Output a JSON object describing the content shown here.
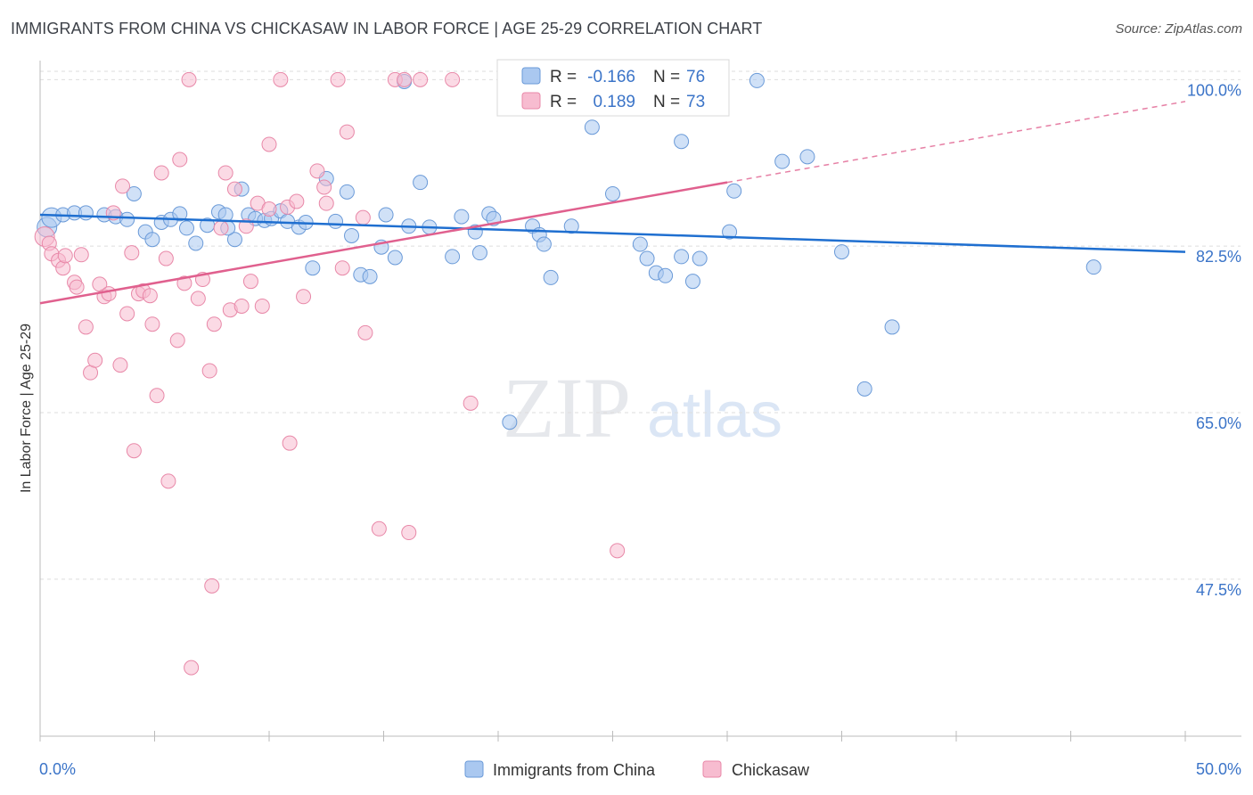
{
  "header": {
    "title": "IMMIGRANTS FROM CHINA VS CHICKASAW IN LABOR FORCE | AGE 25-29 CORRELATION CHART",
    "source": "Source: ZipAtlas.com"
  },
  "watermark": {
    "zip": "ZIP",
    "atlas": "atlas"
  },
  "colors": {
    "blue_fill": "#aac8f0",
    "blue_stroke": "#6a9ad8",
    "blue_line": "#1f6fd0",
    "pink_fill": "#f7bcd0",
    "pink_stroke": "#e888a8",
    "pink_line": "#e0608e",
    "tick_label": "#3b74c8",
    "grid": "#dddddd"
  },
  "legend": {
    "rows": [
      {
        "r_label": "R =",
        "r_value": "-0.166",
        "n_label": "N =",
        "n_value": "76"
      },
      {
        "r_label": "R =",
        "r_value": "0.189",
        "n_label": "N =",
        "n_value": "73"
      }
    ]
  },
  "bottom_legend": [
    "Immigrants from China",
    "Chickasaw"
  ],
  "chart_data": {
    "type": "scatter",
    "title": "IMMIGRANTS FROM CHINA VS CHICKASAW IN LABOR FORCE | AGE 25-29 CORRELATION CHART",
    "xlabel": "",
    "ylabel": "In Labor Force | Age 25-29",
    "xlim": [
      0,
      50
    ],
    "ylim": [
      31,
      102
    ],
    "x_tick_labels": [
      "0.0%",
      "50.0%"
    ],
    "y_ticks": [
      100,
      82.5,
      65,
      47.5
    ],
    "y_tick_labels": [
      "100.0%",
      "82.5%",
      "65.0%",
      "47.5%"
    ],
    "series": [
      {
        "name": "Immigrants from China",
        "r": -0.166,
        "n": 76,
        "trend": {
          "x0": 0,
          "y0": 85.8,
          "x1": 50,
          "y1": 81.9
        },
        "points": [
          [
            0.3,
            84.5,
            11
          ],
          [
            0.5,
            85.5,
            11
          ],
          [
            1.0,
            85.8,
            8
          ],
          [
            1.5,
            86.0,
            8
          ],
          [
            2.0,
            86.0,
            8
          ],
          [
            2.8,
            85.8,
            8
          ],
          [
            3.3,
            85.6,
            8
          ],
          [
            3.8,
            85.3,
            8
          ],
          [
            4.1,
            88.0,
            8
          ],
          [
            4.6,
            84.0,
            8
          ],
          [
            4.9,
            83.2,
            8
          ],
          [
            5.3,
            85.0,
            8
          ],
          [
            5.7,
            85.3,
            8
          ],
          [
            6.1,
            85.9,
            8
          ],
          [
            6.4,
            84.4,
            8
          ],
          [
            6.8,
            82.8,
            8
          ],
          [
            7.3,
            84.7,
            8
          ],
          [
            7.8,
            86.1,
            8
          ],
          [
            8.1,
            85.8,
            8
          ],
          [
            8.5,
            83.2,
            8
          ],
          [
            8.8,
            88.5,
            8
          ],
          [
            9.1,
            85.8,
            8
          ],
          [
            9.4,
            85.4,
            8
          ],
          [
            9.8,
            85.2,
            8
          ],
          [
            10.1,
            85.4,
            8
          ],
          [
            10.5,
            86.2,
            8
          ],
          [
            10.8,
            85.1,
            8
          ],
          [
            11.3,
            84.5,
            8
          ],
          [
            11.9,
            80.2,
            8
          ],
          [
            12.5,
            89.6,
            8
          ],
          [
            12.9,
            85.1,
            8
          ],
          [
            13.4,
            88.2,
            8
          ],
          [
            13.6,
            83.6,
            8
          ],
          [
            14.0,
            79.5,
            8
          ],
          [
            14.4,
            79.3,
            8
          ],
          [
            14.9,
            82.4,
            8
          ],
          [
            15.1,
            85.8,
            8
          ],
          [
            15.5,
            81.3,
            8
          ],
          [
            15.9,
            99.8,
            8
          ],
          [
            16.1,
            84.6,
            8
          ],
          [
            16.6,
            89.2,
            8
          ],
          [
            17.0,
            84.5,
            8
          ],
          [
            18.0,
            81.4,
            8
          ],
          [
            18.4,
            85.6,
            8
          ],
          [
            19.0,
            84.0,
            8
          ],
          [
            19.2,
            81.8,
            8
          ],
          [
            19.6,
            85.9,
            8
          ],
          [
            19.8,
            85.4,
            8
          ],
          [
            21.0,
            97.0,
            8
          ],
          [
            21.5,
            84.6,
            8
          ],
          [
            21.8,
            83.7,
            8
          ],
          [
            22.0,
            82.7,
            8
          ],
          [
            22.3,
            79.2,
            8
          ],
          [
            23.2,
            84.6,
            8
          ],
          [
            24.1,
            95.0,
            8
          ],
          [
            25.0,
            88.0,
            8
          ],
          [
            26.2,
            82.7,
            8
          ],
          [
            26.5,
            81.2,
            8
          ],
          [
            26.9,
            79.7,
            8
          ],
          [
            27.3,
            79.4,
            8
          ],
          [
            28.0,
            81.4,
            8
          ],
          [
            28.5,
            78.8,
            8
          ],
          [
            28.8,
            81.2,
            8
          ],
          [
            30.1,
            84.0,
            8
          ],
          [
            30.3,
            88.3,
            8
          ],
          [
            31.3,
            99.9,
            8
          ],
          [
            32.4,
            91.4,
            8
          ],
          [
            33.5,
            91.9,
            8
          ],
          [
            35.0,
            81.9,
            8
          ],
          [
            37.2,
            74.0,
            8
          ],
          [
            46.0,
            80.3,
            8
          ],
          [
            36.0,
            67.5,
            8
          ],
          [
            20.5,
            64.0,
            8
          ],
          [
            28.0,
            93.5,
            8
          ],
          [
            11.6,
            85.0,
            8
          ],
          [
            8.2,
            84.4,
            8
          ]
        ]
      },
      {
        "name": "Chickasaw",
        "r": 0.189,
        "n": 73,
        "trend": {
          "x0": 0,
          "y0": 76.5,
          "x1": 30,
          "y1": 89.2,
          "dash_to_x": 50,
          "dash_to_y": 97.7
        },
        "points": [
          [
            0.2,
            83.5,
            11
          ],
          [
            0.4,
            82.8,
            8
          ],
          [
            0.5,
            81.7,
            8
          ],
          [
            0.8,
            81.0,
            8
          ],
          [
            1.0,
            80.2,
            8
          ],
          [
            1.1,
            81.5,
            8
          ],
          [
            1.5,
            78.7,
            8
          ],
          [
            1.6,
            78.2,
            8
          ],
          [
            1.8,
            81.6,
            8
          ],
          [
            2.0,
            74.0,
            8
          ],
          [
            2.2,
            69.2,
            8
          ],
          [
            2.4,
            70.5,
            8
          ],
          [
            2.6,
            78.5,
            8
          ],
          [
            2.8,
            77.2,
            8
          ],
          [
            3.0,
            77.5,
            8
          ],
          [
            3.2,
            86.0,
            8
          ],
          [
            3.5,
            70.0,
            8
          ],
          [
            3.6,
            88.8,
            8
          ],
          [
            3.8,
            75.4,
            8
          ],
          [
            4.0,
            81.8,
            8
          ],
          [
            4.1,
            61.0,
            8
          ],
          [
            4.3,
            77.5,
            8
          ],
          [
            4.5,
            77.8,
            8
          ],
          [
            4.8,
            77.3,
            8
          ],
          [
            4.9,
            74.3,
            8
          ],
          [
            5.1,
            66.8,
            8
          ],
          [
            5.3,
            90.2,
            8
          ],
          [
            5.5,
            81.2,
            8
          ],
          [
            5.6,
            57.8,
            8
          ],
          [
            6.0,
            72.6,
            8
          ],
          [
            6.1,
            91.6,
            8
          ],
          [
            6.3,
            78.6,
            8
          ],
          [
            6.5,
            100.0,
            8
          ],
          [
            6.6,
            38.2,
            8
          ],
          [
            6.9,
            77.0,
            8
          ],
          [
            7.1,
            79.0,
            8
          ],
          [
            7.4,
            69.4,
            8
          ],
          [
            7.5,
            46.8,
            8
          ],
          [
            7.6,
            74.3,
            8
          ],
          [
            7.9,
            84.4,
            8
          ],
          [
            8.1,
            90.2,
            8
          ],
          [
            8.3,
            75.8,
            8
          ],
          [
            8.5,
            88.5,
            8
          ],
          [
            8.8,
            76.2,
            8
          ],
          [
            9.0,
            84.6,
            8
          ],
          [
            9.2,
            78.8,
            8
          ],
          [
            9.5,
            87.0,
            8
          ],
          [
            9.7,
            76.2,
            8
          ],
          [
            10.0,
            86.4,
            8
          ],
          [
            10.5,
            100.0,
            8
          ],
          [
            10.8,
            86.6,
            8
          ],
          [
            10.9,
            61.8,
            8
          ],
          [
            11.2,
            87.2,
            8
          ],
          [
            11.5,
            77.2,
            8
          ],
          [
            12.1,
            90.4,
            8
          ],
          [
            12.4,
            88.7,
            8
          ],
          [
            12.5,
            87.0,
            8
          ],
          [
            13.0,
            100.0,
            8
          ],
          [
            13.2,
            80.2,
            8
          ],
          [
            13.4,
            94.5,
            8
          ],
          [
            14.1,
            85.5,
            8
          ],
          [
            14.2,
            73.4,
            8
          ],
          [
            14.8,
            52.8,
            8
          ],
          [
            15.5,
            100.0,
            8
          ],
          [
            15.9,
            100.0,
            8
          ],
          [
            16.1,
            52.4,
            8
          ],
          [
            16.6,
            100.0,
            8
          ],
          [
            18.0,
            100.0,
            8
          ],
          [
            18.8,
            66.0,
            8
          ],
          [
            20.5,
            100.0,
            8
          ],
          [
            22.0,
            100.0,
            8
          ],
          [
            25.2,
            50.5,
            8
          ],
          [
            10.0,
            93.2,
            8
          ]
        ]
      }
    ]
  }
}
